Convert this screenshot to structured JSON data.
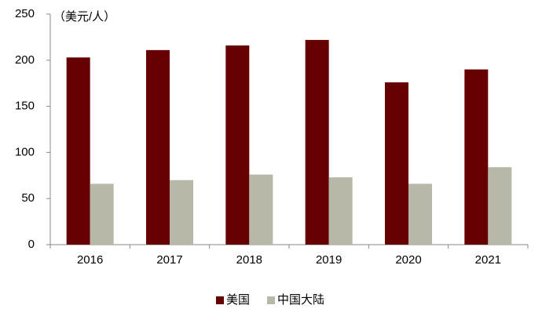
{
  "chart_data": {
    "type": "bar",
    "y_label": "（美元/人）",
    "categories": [
      "2016",
      "2017",
      "2018",
      "2019",
      "2020",
      "2021"
    ],
    "series": [
      {
        "name": "美国",
        "color": "#660000",
        "values": [
          203,
          211,
          216,
          222,
          176,
          190
        ]
      },
      {
        "name": "中国大陆",
        "color": "#b8b8a8",
        "values": [
          66,
          70,
          76,
          73,
          66,
          84
        ]
      }
    ],
    "ylim": [
      0,
      250
    ],
    "yticks": [
      0,
      50,
      100,
      150,
      200,
      250
    ],
    "grid": false,
    "legend": "bottom"
  }
}
